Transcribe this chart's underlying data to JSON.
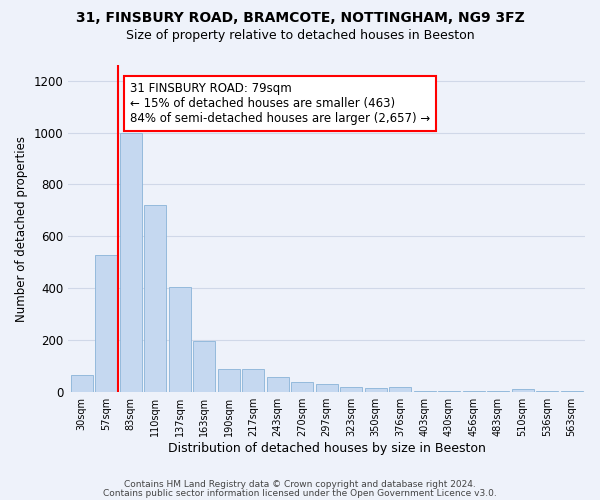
{
  "title1": "31, FINSBURY ROAD, BRAMCOTE, NOTTINGHAM, NG9 3FZ",
  "title2": "Size of property relative to detached houses in Beeston",
  "xlabel": "Distribution of detached houses by size in Beeston",
  "ylabel": "Number of detached properties",
  "categories": [
    "30sqm",
    "57sqm",
    "83sqm",
    "110sqm",
    "137sqm",
    "163sqm",
    "190sqm",
    "217sqm",
    "243sqm",
    "270sqm",
    "297sqm",
    "323sqm",
    "350sqm",
    "376sqm",
    "403sqm",
    "430sqm",
    "456sqm",
    "483sqm",
    "510sqm",
    "536sqm",
    "563sqm"
  ],
  "values": [
    65,
    530,
    1000,
    720,
    405,
    198,
    88,
    88,
    58,
    40,
    32,
    20,
    18,
    20,
    3,
    3,
    3,
    3,
    13,
    3,
    3
  ],
  "bar_color": "#c5d8f0",
  "bar_edge_color": "#8ab4d8",
  "grid_color": "#d0d8e8",
  "vline_x": 1.5,
  "vline_color": "red",
  "annotation_text": "31 FINSBURY ROAD: 79sqm\n← 15% of detached houses are smaller (463)\n84% of semi-detached houses are larger (2,657) →",
  "annotation_box_color": "white",
  "annotation_box_edge_color": "red",
  "ylim": [
    0,
    1260
  ],
  "yticks": [
    0,
    200,
    400,
    600,
    800,
    1000,
    1200
  ],
  "footer1": "Contains HM Land Registry data © Crown copyright and database right 2024.",
  "footer2": "Contains public sector information licensed under the Open Government Licence v3.0.",
  "bg_color": "#eef2fa"
}
